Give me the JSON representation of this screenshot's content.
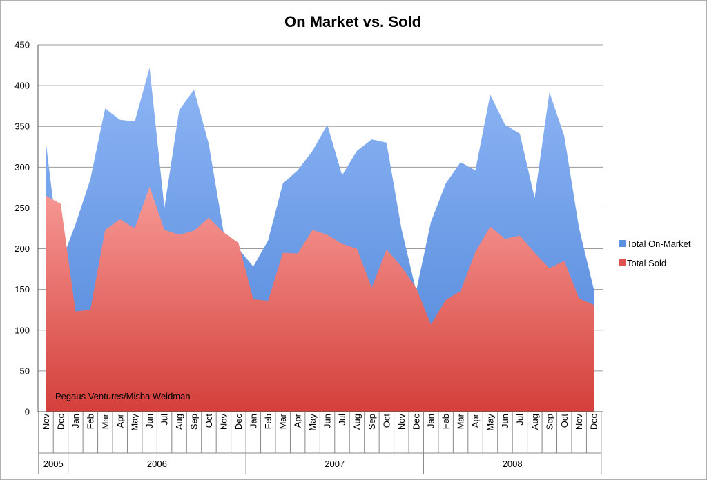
{
  "chart_data": {
    "type": "area",
    "title": "On Market vs. Sold",
    "xlabel": "",
    "ylabel": "",
    "ylim": [
      0,
      450
    ],
    "yticks": [
      0,
      50,
      100,
      150,
      200,
      250,
      300,
      350,
      400,
      450
    ],
    "grid": true,
    "legend_position": "right",
    "annotation": "Pegaus Ventures/Misha Weidman",
    "categories": [
      "Nov",
      "Dec",
      "Jan",
      "Feb",
      "Mar",
      "Apr",
      "May",
      "Jun",
      "Jul",
      "Aug",
      "Sep",
      "Oct",
      "Nov",
      "Dec",
      "Jan",
      "Feb",
      "Mar",
      "Apr",
      "May",
      "Jun",
      "Jul",
      "Aug",
      "Sep",
      "Oct",
      "Nov",
      "Dec",
      "Jan",
      "Feb",
      "Mar",
      "Apr",
      "May",
      "Jun",
      "Jul",
      "Aug",
      "Sep",
      "Oct",
      "Nov",
      "Dec"
    ],
    "year_groups": [
      {
        "label": "2005",
        "count": 2
      },
      {
        "label": "2006",
        "count": 12
      },
      {
        "label": "2007",
        "count": 12
      },
      {
        "label": "2008",
        "count": 12
      }
    ],
    "series": [
      {
        "name": "Total On-Market",
        "color": "#5b8fe0",
        "values": [
          330,
          182,
          230,
          285,
          372,
          358,
          356,
          422,
          250,
          370,
          395,
          328,
          220,
          200,
          178,
          210,
          280,
          296,
          320,
          352,
          290,
          320,
          334,
          330,
          225,
          148,
          233,
          280,
          306,
          296,
          389,
          352,
          341,
          262,
          392,
          338,
          225,
          150
        ]
      },
      {
        "name": "Total Sold",
        "color": "#e0524f",
        "values": [
          265,
          255,
          123,
          125,
          223,
          236,
          225,
          276,
          223,
          217,
          222,
          238,
          220,
          207,
          138,
          136,
          195,
          194,
          223,
          217,
          206,
          200,
          152,
          199,
          178,
          152,
          107,
          137,
          148,
          196,
          227,
          212,
          216,
          195,
          176,
          185,
          139,
          131
        ]
      }
    ]
  }
}
